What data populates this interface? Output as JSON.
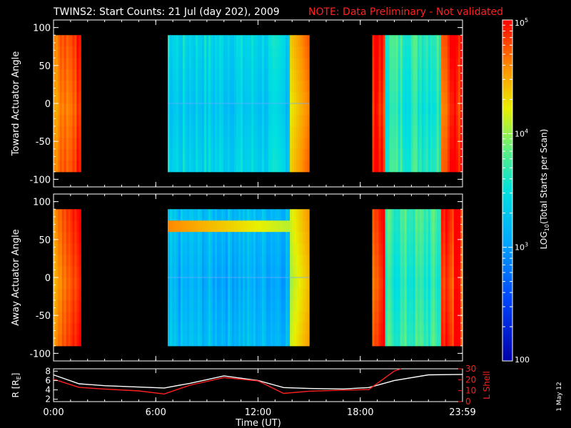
{
  "title": {
    "main": "TWINS2: Start Counts: 21 Jul (day 202), 2009",
    "note": "NOTE: Data Preliminary - Not validated"
  },
  "side_date": "1 May 12",
  "chart_data": [
    {
      "type": "heatmap",
      "ylabel": "Toward Actuator Angle",
      "yticks": [
        "100",
        "50",
        "0",
        "-50",
        "-100"
      ],
      "ylim": [
        -110,
        110
      ],
      "y_data_range": [
        -90,
        90
      ],
      "xlim_hours": [
        0,
        24
      ],
      "data_segments_hours": [
        [
          0.0,
          1.6
        ],
        [
          6.7,
          15.0
        ],
        [
          18.7,
          24.0
        ]
      ],
      "segment_levels_log10": [
        4.8,
        3.3,
        3.6
      ]
    },
    {
      "type": "heatmap",
      "ylabel": "Away Actuator Angle",
      "yticks": [
        "100",
        "50",
        "0",
        "-50",
        "-100"
      ],
      "ylim": [
        -110,
        110
      ],
      "y_data_range": [
        -90,
        90
      ],
      "xlim_hours": [
        0,
        24
      ],
      "data_segments_hours": [
        [
          0.0,
          1.6
        ],
        [
          6.7,
          15.0
        ],
        [
          18.7,
          24.0
        ]
      ],
      "segment_levels_log10": [
        4.8,
        3.1,
        3.6
      ]
    },
    {
      "type": "line",
      "ylabel_left": "R [R",
      "ylabel_left_sub": "E",
      "ylabel_left_end": "]",
      "ylabel_right": "L Shell",
      "yticks_left": [
        "8",
        "6",
        "4",
        "2"
      ],
      "yticks_right": [
        "30",
        "20",
        "10",
        "0"
      ],
      "ylim_left": [
        1.5,
        8.5
      ],
      "ylim_right": [
        0,
        30
      ],
      "series": [
        {
          "name": "R",
          "color": "#ffffff",
          "x": [
            0,
            1.5,
            3,
            5,
            6.5,
            8,
            10,
            12,
            13.5,
            15,
            17,
            18.5,
            20,
            22,
            24
          ],
          "y": [
            7.2,
            5.3,
            4.9,
            4.6,
            4.4,
            5.4,
            7.0,
            6.0,
            4.5,
            4.3,
            4.2,
            4.5,
            6.0,
            7.2,
            7.3
          ]
        },
        {
          "name": "L Shell",
          "color": "#ff2020",
          "x": [
            0,
            1.5,
            3,
            5,
            6.5,
            8,
            10,
            12,
            13.5,
            15,
            17,
            18.5,
            20,
            20.4
          ],
          "y": [
            20.5,
            13.0,
            11.5,
            9.8,
            7.0,
            15.0,
            22.0,
            19.0,
            7.5,
            9.5,
            10.5,
            11.0,
            28,
            31
          ]
        }
      ]
    }
  ],
  "xaxis": {
    "label": "Time (UT)",
    "ticks": [
      "0:00",
      "6:00",
      "12:00",
      "18:00",
      "23:59"
    ],
    "tick_hours": [
      0,
      6,
      12,
      18,
      24
    ]
  },
  "colorbar": {
    "label_main": "LOG",
    "label_sub": "10",
    "label_rest": "(Total Starts per Scan)",
    "range_log10": [
      2,
      5
    ],
    "tick_labels": [
      {
        "base": "10",
        "exp": "5",
        "log": 5
      },
      {
        "base": "10",
        "exp": "4",
        "log": 4
      },
      {
        "base": "10",
        "exp": "3",
        "log": 3
      },
      {
        "base": "100",
        "exp": "",
        "log": 2
      }
    ]
  }
}
